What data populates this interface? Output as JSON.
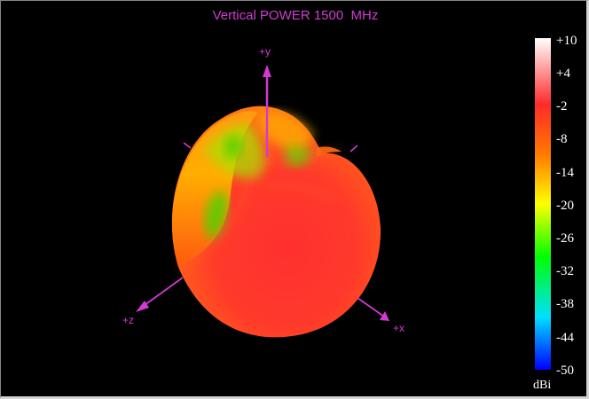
{
  "title": "Vertical POWER 1500  MHz",
  "axes": {
    "y": "+y",
    "z": "+z",
    "x": "+x"
  },
  "colors": {
    "background": "#000000",
    "axis": "#d23ad2",
    "scale_labels": "#ffffff",
    "colormap": [
      "#ffffff",
      "#ff2a2a",
      "#ff7a00",
      "#ffff00",
      "#00ff00",
      "#00e0ff",
      "#0000ff"
    ]
  },
  "scale": {
    "ticks": [
      "+10",
      "+4",
      "-2",
      "-8",
      "-14",
      "-20",
      "-26",
      "-32",
      "-38",
      "-44",
      "-50"
    ],
    "unit": "dBi"
  }
}
